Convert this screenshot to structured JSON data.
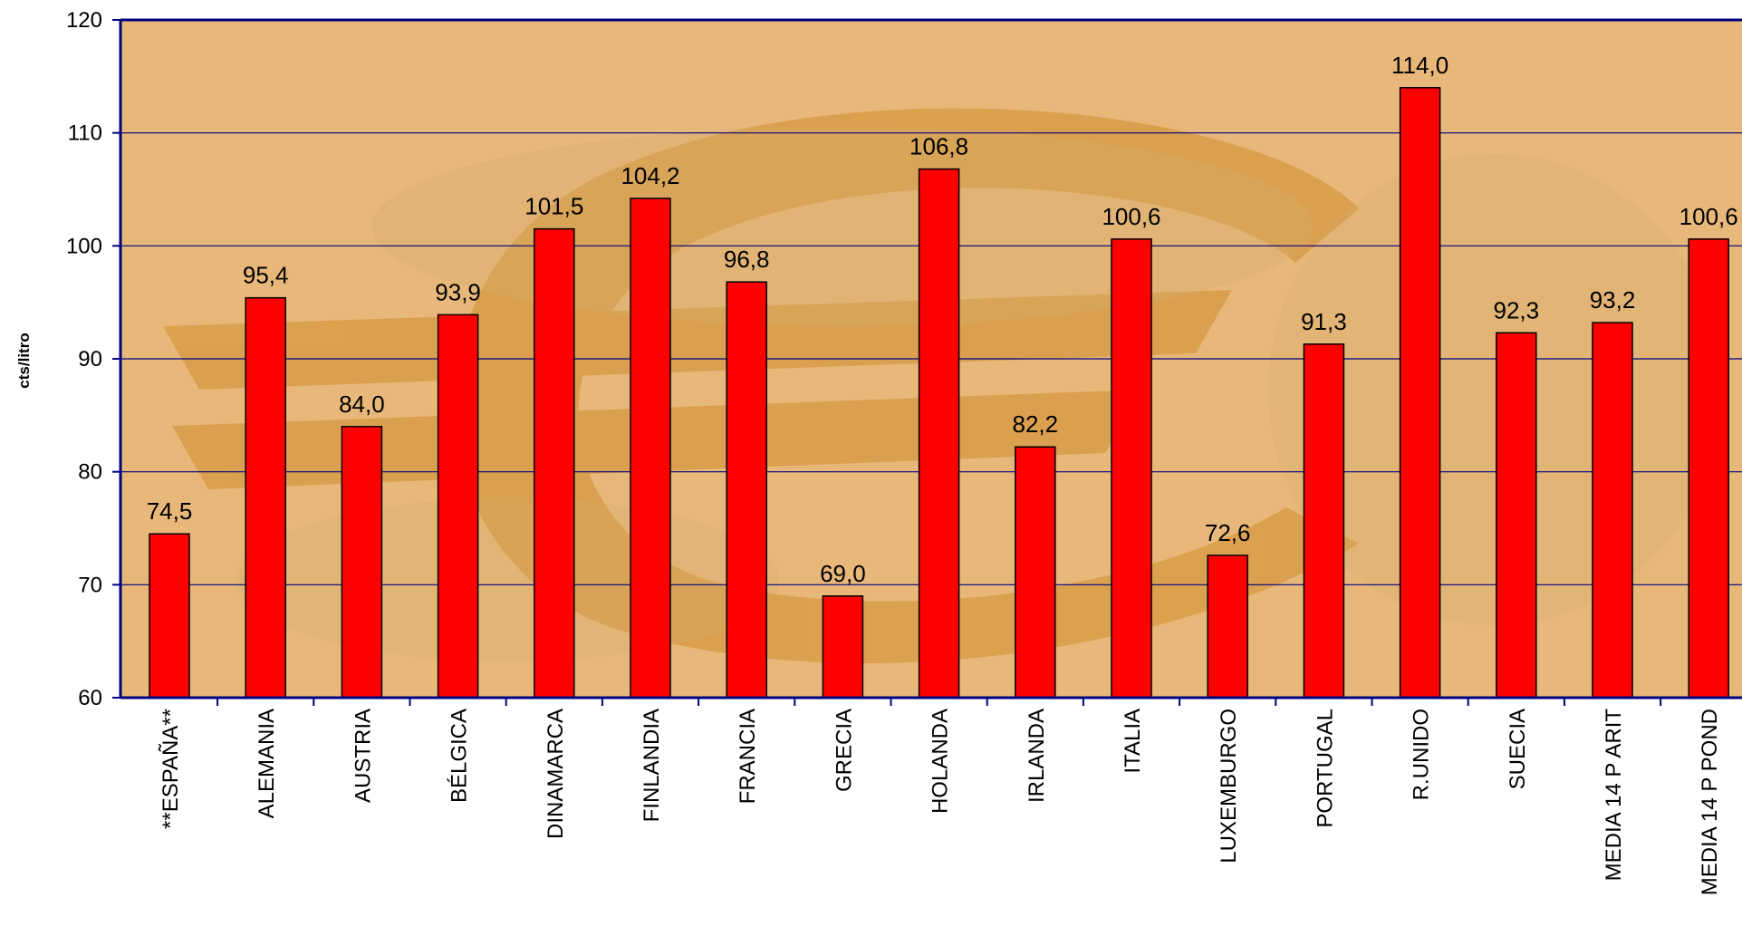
{
  "chart_data": {
    "type": "bar",
    "title": "",
    "xlabel": "",
    "ylabel": "cts/litro",
    "ylim": [
      60,
      120
    ],
    "yticks": [
      60,
      70,
      80,
      90,
      100,
      110,
      120
    ],
    "grid": true,
    "legend": "none",
    "categories": [
      "**ESPAÑA**",
      "ALEMANIA",
      "AUSTRIA",
      "BÉLGICA",
      "DINAMARCA",
      "FINLANDIA",
      "FRANCIA",
      "GRECIA",
      "HOLANDA",
      "IRLANDA",
      "ITALIA",
      "LUXEMBURGO",
      "PORTUGAL",
      "R.UNIDO",
      "SUECIA",
      "MEDIA 14 P ARIT",
      "MEDIA 14 P POND"
    ],
    "values": [
      74.5,
      95.4,
      84.0,
      93.9,
      101.5,
      104.2,
      96.8,
      69.0,
      106.8,
      82.2,
      100.6,
      72.6,
      91.3,
      114.0,
      92.3,
      93.2,
      100.6
    ],
    "value_labels": [
      "74,5",
      "95,4",
      "84,0",
      "93,9",
      "101,5",
      "104,2",
      "96,8",
      "69,0",
      "106,8",
      "82,2",
      "100,6",
      "72,6",
      "91,3",
      "114,0",
      "92,3",
      "93,2",
      "100,6"
    ],
    "colors": {
      "bar_fill": "#ff0000",
      "bar_stroke": "#000000",
      "plot_background": "#e8b87a",
      "euro_watermark": "#d99a3c",
      "gridline": "#000080",
      "axis": "#000080"
    }
  }
}
